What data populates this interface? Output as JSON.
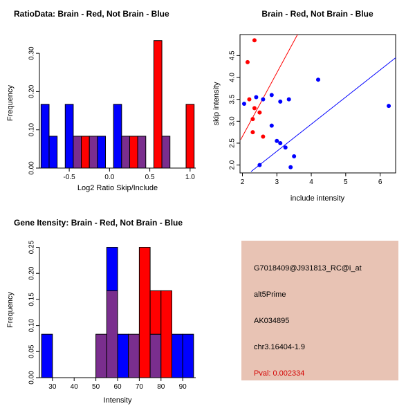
{
  "colors": {
    "red": "#ff0000",
    "blue": "#0000ff",
    "purple": "#7a2e8e",
    "axis": "#000000",
    "info_bg": "#e8c3b4",
    "pval": "#d40000"
  },
  "chart_data": [
    {
      "id": "ratio-histogram",
      "type": "bar",
      "title": "RatioData: Brain - Red, Not Brain - Blue",
      "xlabel": "Log2 Ratio Skip/Include",
      "ylabel": "Frequency",
      "legend": [
        {
          "name": "Brain",
          "color": "red"
        },
        {
          "name": "Not Brain",
          "color": "blue"
        }
      ],
      "xlim": [
        -0.87,
        1.07
      ],
      "ylim": [
        0,
        0.34
      ],
      "xticks": [
        {
          "v": -0.5,
          "label": "-0.5"
        },
        {
          "v": 0.0,
          "label": "0.0"
        },
        {
          "v": 0.5,
          "label": "0.5"
        },
        {
          "v": 1.0,
          "label": "1.0"
        }
      ],
      "yticks": [
        {
          "v": 0.0,
          "label": "0.00"
        },
        {
          "v": 0.1,
          "label": "0.10"
        },
        {
          "v": 0.2,
          "label": "0.20"
        },
        {
          "v": 0.3,
          "label": "0.30"
        }
      ],
      "bars": [
        {
          "x0": -0.85,
          "x1": -0.75,
          "y0": 0,
          "y1": 0.1667,
          "color": "blue"
        },
        {
          "x0": -0.75,
          "x1": -0.65,
          "y0": 0,
          "y1": 0.0833,
          "color": "blue"
        },
        {
          "x0": -0.55,
          "x1": -0.45,
          "y0": 0,
          "y1": 0.1667,
          "color": "blue"
        },
        {
          "x0": -0.45,
          "x1": -0.35,
          "y0": 0,
          "y1": 0.0833,
          "color": "purple"
        },
        {
          "x0": -0.35,
          "x1": -0.25,
          "y0": 0,
          "y1": 0.0833,
          "color": "red"
        },
        {
          "x0": -0.25,
          "x1": -0.15,
          "y0": 0,
          "y1": 0.0833,
          "color": "purple"
        },
        {
          "x0": -0.15,
          "x1": -0.05,
          "y0": 0,
          "y1": 0.0833,
          "color": "blue"
        },
        {
          "x0": 0.05,
          "x1": 0.15,
          "y0": 0,
          "y1": 0.1667,
          "color": "blue"
        },
        {
          "x0": 0.15,
          "x1": 0.25,
          "y0": 0,
          "y1": 0.0833,
          "color": "purple"
        },
        {
          "x0": 0.25,
          "x1": 0.35,
          "y0": 0,
          "y1": 0.0833,
          "color": "red"
        },
        {
          "x0": 0.35,
          "x1": 0.45,
          "y0": 0,
          "y1": 0.0833,
          "color": "purple"
        },
        {
          "x0": 0.55,
          "x1": 0.65,
          "y0": 0,
          "y1": 0.3333,
          "color": "red"
        },
        {
          "x0": 0.65,
          "x1": 0.75,
          "y0": 0,
          "y1": 0.0833,
          "color": "purple"
        },
        {
          "x0": 0.95,
          "x1": 1.05,
          "y0": 0,
          "y1": 0.1667,
          "color": "red"
        }
      ]
    },
    {
      "id": "intensity-scatter",
      "type": "scatter",
      "title": "Brain - Red, Not Brain - Blue",
      "xlabel": "include intensity",
      "ylabel": "skip intensity",
      "legend": [
        {
          "name": "Brain",
          "color": "red"
        },
        {
          "name": "Not Brain",
          "color": "blue"
        }
      ],
      "xlim": [
        1.93,
        6.45
      ],
      "ylim": [
        1.82,
        4.98
      ],
      "xticks": [
        {
          "v": 2,
          "label": "2"
        },
        {
          "v": 3,
          "label": "3"
        },
        {
          "v": 4,
          "label": "4"
        },
        {
          "v": 5,
          "label": "5"
        },
        {
          "v": 6,
          "label": "6"
        }
      ],
      "yticks": [
        {
          "v": 2.0,
          "label": "2.0"
        },
        {
          "v": 2.5,
          "label": "2.5"
        },
        {
          "v": 3.0,
          "label": "3.0"
        },
        {
          "v": 3.5,
          "label": "3.5"
        },
        {
          "v": 4.0,
          "label": "4.0"
        },
        {
          "v": 4.5,
          "label": "4.5"
        }
      ],
      "series": [
        {
          "name": "Brain",
          "color": "red",
          "points": [
            [
              2.15,
              4.35
            ],
            [
              2.35,
              4.85
            ],
            [
              2.2,
              3.5
            ],
            [
              2.35,
              3.3
            ],
            [
              2.5,
              3.2
            ],
            [
              2.3,
              3.05
            ],
            [
              2.3,
              2.75
            ],
            [
              2.6,
              2.65
            ]
          ]
        },
        {
          "name": "Not Brain",
          "color": "blue",
          "points": [
            [
              2.05,
              3.4
            ],
            [
              2.4,
              3.55
            ],
            [
              2.6,
              3.5
            ],
            [
              2.85,
              3.6
            ],
            [
              3.1,
              3.45
            ],
            [
              3.35,
              3.5
            ],
            [
              4.2,
              3.95
            ],
            [
              6.25,
              3.35
            ],
            [
              2.85,
              2.9
            ],
            [
              3.0,
              2.55
            ],
            [
              3.1,
              2.5
            ],
            [
              3.25,
              2.4
            ],
            [
              3.5,
              2.2
            ],
            [
              3.4,
              1.95
            ],
            [
              2.5,
              2.0
            ]
          ]
        }
      ],
      "lines": [
        {
          "x1": 1.95,
          "y1": 2.58,
          "x2": 3.6,
          "y2": 4.98,
          "color": "red"
        },
        {
          "x1": 2.25,
          "y1": 1.85,
          "x2": 6.45,
          "y2": 4.45,
          "color": "blue"
        }
      ]
    },
    {
      "id": "gene-intensity-histogram",
      "type": "bar",
      "title": "Gene Itensity: Brain - Red, Not Brain - Blue",
      "xlabel": "Intensity",
      "ylabel": "Frequency",
      "legend": [
        {
          "name": "Brain",
          "color": "red"
        },
        {
          "name": "Not Brain",
          "color": "blue"
        }
      ],
      "xlim": [
        24,
        96
      ],
      "ylim": [
        0,
        0.26
      ],
      "xticks": [
        {
          "v": 30,
          "label": "30"
        },
        {
          "v": 40,
          "label": "40"
        },
        {
          "v": 50,
          "label": "50"
        },
        {
          "v": 60,
          "label": "60"
        },
        {
          "v": 70,
          "label": "70"
        },
        {
          "v": 80,
          "label": "80"
        },
        {
          "v": 90,
          "label": "90"
        }
      ],
      "yticks": [
        {
          "v": 0.0,
          "label": "0.00"
        },
        {
          "v": 0.05,
          "label": "0.05"
        },
        {
          "v": 0.1,
          "label": "0.10"
        },
        {
          "v": 0.15,
          "label": "0.15"
        },
        {
          "v": 0.2,
          "label": "0.20"
        },
        {
          "v": 0.25,
          "label": "0.25"
        }
      ],
      "bars": [
        {
          "x0": 25,
          "x1": 30,
          "y0": 0,
          "y1": 0.0833,
          "color": "blue"
        },
        {
          "x0": 50,
          "x1": 55,
          "y0": 0,
          "y1": 0.0833,
          "color": "purple"
        },
        {
          "x0": 55,
          "x1": 60,
          "y0": 0,
          "y1": 0.1667,
          "color": "purple"
        },
        {
          "x0": 55,
          "x1": 60,
          "y0": 0.1667,
          "y1": 0.25,
          "color": "blue"
        },
        {
          "x0": 60,
          "x1": 65,
          "y0": 0,
          "y1": 0.0833,
          "color": "blue"
        },
        {
          "x0": 65,
          "x1": 70,
          "y0": 0,
          "y1": 0.0833,
          "color": "purple"
        },
        {
          "x0": 70,
          "x1": 75,
          "y0": 0,
          "y1": 0.25,
          "color": "red"
        },
        {
          "x0": 75,
          "x1": 80,
          "y0": 0,
          "y1": 0.0833,
          "color": "purple"
        },
        {
          "x0": 75,
          "x1": 80,
          "y0": 0.0833,
          "y1": 0.1667,
          "color": "red"
        },
        {
          "x0": 80,
          "x1": 85,
          "y0": 0,
          "y1": 0.1667,
          "color": "red"
        },
        {
          "x0": 85,
          "x1": 90,
          "y0": 0,
          "y1": 0.0833,
          "color": "blue"
        },
        {
          "x0": 90,
          "x1": 95,
          "y0": 0,
          "y1": 0.0833,
          "color": "blue"
        }
      ]
    }
  ],
  "info_box": {
    "probe_id": "G7018409@J931813_RC@i_at",
    "splice_type": "alt5Prime",
    "accession": "AK034895",
    "locus": "chr3.16404-1.9",
    "pval": "Pval: 0.002334"
  }
}
